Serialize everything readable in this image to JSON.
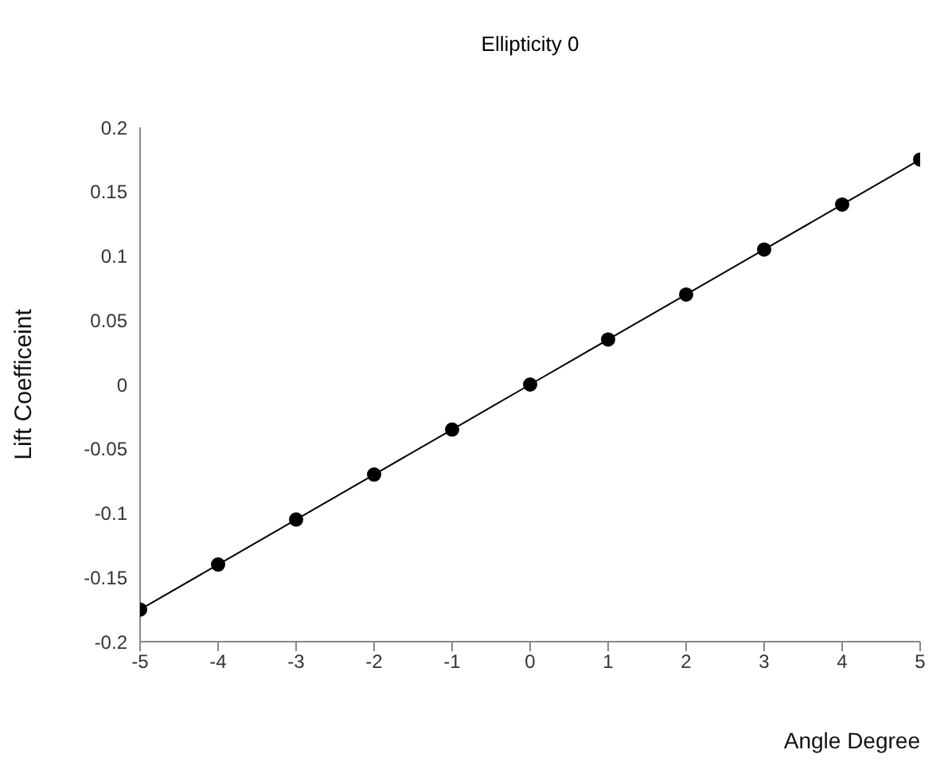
{
  "chart_data": {
    "type": "line",
    "title": "Ellipticity 0",
    "xlabel": "Angle Degree",
    "ylabel": "Lift Coefficeint",
    "x": [
      -5,
      -4,
      -3,
      -2,
      -1,
      0,
      1,
      2,
      3,
      4,
      5
    ],
    "series": [
      {
        "color": "#000000",
        "values": [
          -0.175,
          -0.14,
          -0.105,
          -0.07,
          -0.035,
          0,
          0.035,
          0.07,
          0.105,
          0.14,
          0.175
        ]
      }
    ],
    "xlim": [
      -5,
      5
    ],
    "xticks": [
      -5,
      -4,
      -3,
      -2,
      -1,
      0,
      1,
      2,
      3,
      4,
      5
    ],
    "ylim": [
      -0.2,
      0.2
    ],
    "yticks": [
      -0.2,
      -0.15,
      -0.1,
      -0.05,
      0,
      0.05,
      0.1,
      0.15,
      0.2
    ],
    "marker": "circle",
    "line_style": "solid",
    "grid": false,
    "legend": false
  }
}
